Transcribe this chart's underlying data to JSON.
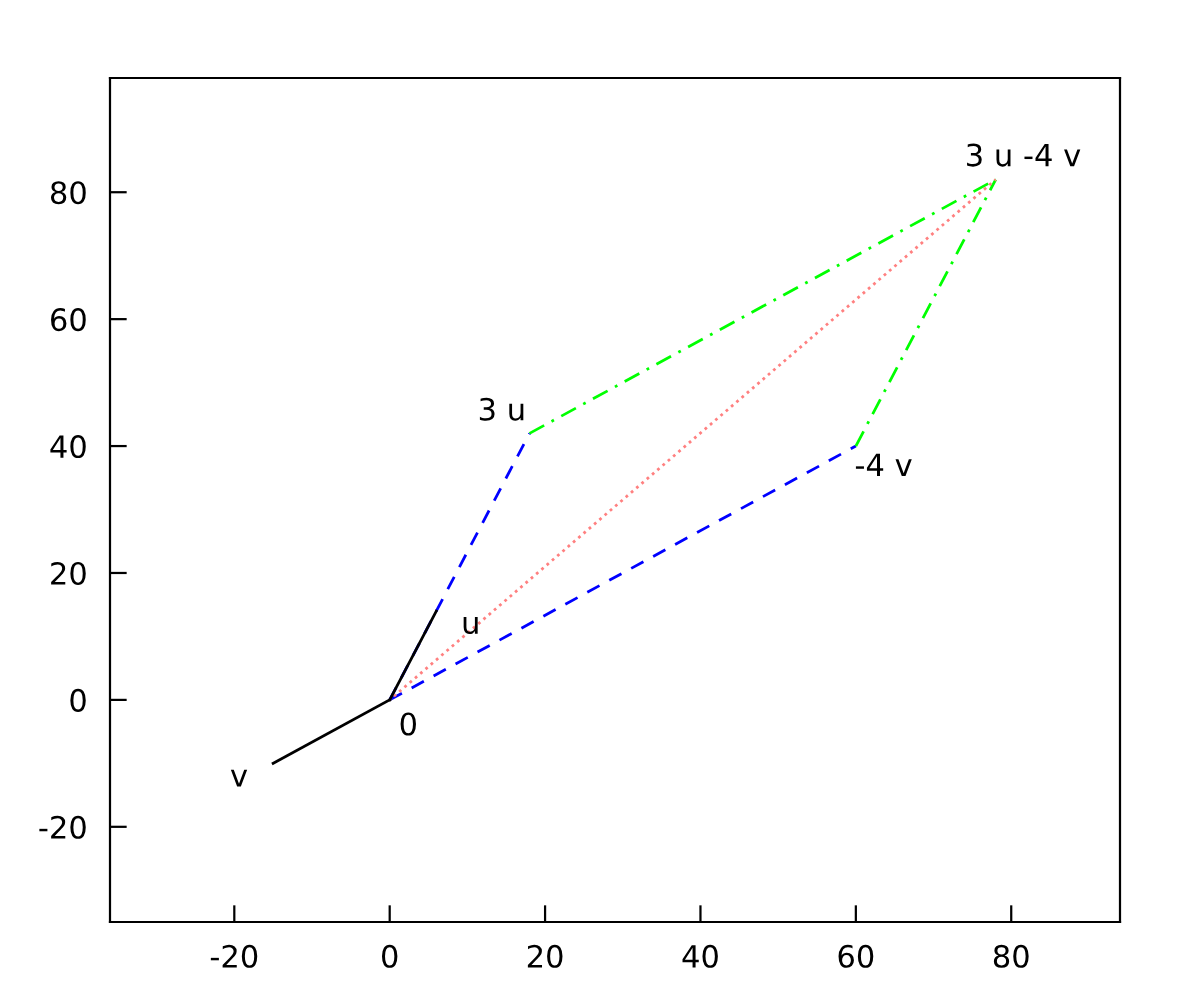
{
  "chart_data": {
    "type": "line",
    "xlim": [
      -36,
      94
    ],
    "ylim": [
      -35,
      98
    ],
    "xticks": [
      -20,
      0,
      20,
      40,
      60,
      80
    ],
    "yticks": [
      -20,
      0,
      20,
      40,
      60,
      80
    ],
    "grid": false,
    "legend": false,
    "marker": "none",
    "series": [
      {
        "color": "#0000ff",
        "line_style": "dashed",
        "x": [
          0,
          18
        ],
        "values": [
          0,
          42
        ]
      },
      {
        "color": "#0000ff",
        "line_style": "dashed",
        "x": [
          0,
          60
        ],
        "values": [
          0,
          40
        ]
      },
      {
        "color": "#00ff00",
        "line_style": "dashdot",
        "x": [
          18,
          78
        ],
        "values": [
          42,
          82
        ]
      },
      {
        "color": "#00ff00",
        "line_style": "dashdot",
        "x": [
          60,
          78
        ],
        "values": [
          40,
          82
        ]
      },
      {
        "color": "#ff8080",
        "line_style": "dotted",
        "x": [
          0,
          78
        ],
        "values": [
          0,
          82
        ]
      },
      {
        "color": "#000000",
        "line_style": "solid",
        "x": [
          0,
          6
        ],
        "values": [
          0,
          14
        ]
      },
      {
        "color": "#000000",
        "line_style": "solid",
        "x": [
          0,
          -15
        ],
        "values": [
          0,
          -10
        ]
      }
    ],
    "annotations": [
      {
        "text": "0",
        "x": 0,
        "y": 0
      },
      {
        "text": "u",
        "x": 6,
        "y": 14
      },
      {
        "text": "v",
        "x": -15,
        "y": -10
      },
      {
        "text": "3 u",
        "x": 18,
        "y": 42
      },
      {
        "text": "-4 v",
        "x": 60,
        "y": 40
      },
      {
        "text": "3 u -4 v",
        "x": 78,
        "y": 82
      }
    ]
  }
}
